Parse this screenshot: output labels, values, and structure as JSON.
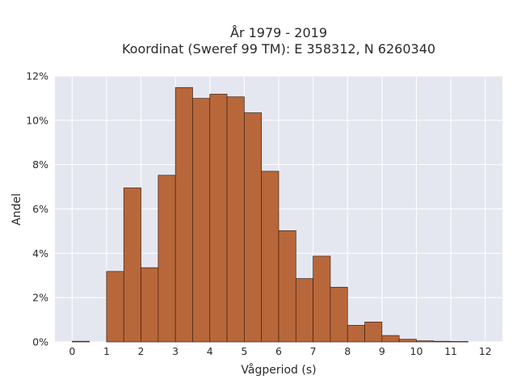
{
  "chart_data": {
    "type": "bar",
    "title": "År 1979 - 2019",
    "subtitle": "Koordinat (Sweref 99 TM): E 358312, N 6260340",
    "xlabel": "Vågperiod (s)",
    "ylabel": "Andel",
    "xlim": [
      -0.5,
      12.5
    ],
    "ylim": [
      0,
      0.12
    ],
    "x_ticks": [
      0,
      1,
      2,
      3,
      4,
      5,
      6,
      7,
      8,
      9,
      10,
      11,
      12
    ],
    "y_ticks": [
      0,
      0.02,
      0.04,
      0.06,
      0.08,
      0.1,
      0.12
    ],
    "y_tick_labels": [
      "0%",
      "2%",
      "4%",
      "6%",
      "8%",
      "10%",
      "12%"
    ],
    "bin_width": 0.5,
    "bins": [
      {
        "start": 0.0,
        "value": 0.0003
      },
      {
        "start": 1.0,
        "value": 0.0318
      },
      {
        "start": 1.5,
        "value": 0.0695
      },
      {
        "start": 2.0,
        "value": 0.0335
      },
      {
        "start": 2.5,
        "value": 0.0752
      },
      {
        "start": 3.0,
        "value": 0.1148
      },
      {
        "start": 3.5,
        "value": 0.1099
      },
      {
        "start": 4.0,
        "value": 0.1118
      },
      {
        "start": 4.5,
        "value": 0.1106
      },
      {
        "start": 5.0,
        "value": 0.1034
      },
      {
        "start": 5.5,
        "value": 0.077
      },
      {
        "start": 6.0,
        "value": 0.0502
      },
      {
        "start": 6.5,
        "value": 0.0286
      },
      {
        "start": 7.0,
        "value": 0.0387
      },
      {
        "start": 7.5,
        "value": 0.0247
      },
      {
        "start": 8.0,
        "value": 0.0075
      },
      {
        "start": 8.5,
        "value": 0.009
      },
      {
        "start": 9.0,
        "value": 0.0029
      },
      {
        "start": 9.5,
        "value": 0.0012
      },
      {
        "start": 10.0,
        "value": 0.0005
      },
      {
        "start": 10.5,
        "value": 0.0003
      },
      {
        "start": 11.0,
        "value": 0.0002
      }
    ],
    "grid": true,
    "legend": false,
    "colors": {
      "bar_fill": "#b8673a",
      "bar_edge": "#3d2516",
      "plot_background": "#e5e7f0",
      "grid": "#ffffff"
    }
  }
}
